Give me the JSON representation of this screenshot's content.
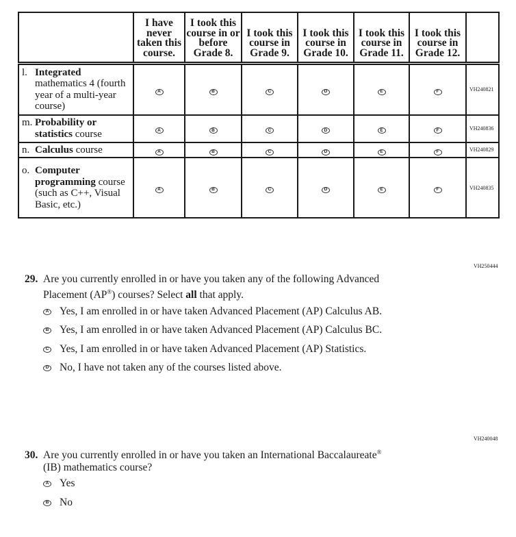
{
  "table": {
    "headers": [
      "",
      "I have never taken this course.",
      "I took this course in or before Grade 8.",
      "I took this course in Grade 9.",
      "I took this course in Grade 10.",
      "I took this course in Grade 11.",
      "I took this course in Grade 12.",
      ""
    ],
    "choices": [
      "A",
      "B",
      "C",
      "D",
      "E",
      "F"
    ],
    "rows": [
      {
        "letter": "l.",
        "bold": "Integrated",
        "rest": "mathematics 4 (fourth year of a multi-year course)",
        "code": "VH240821"
      },
      {
        "letter": "m.",
        "bold": "Probability or statistics",
        "rest": "course",
        "code": "VH240836"
      },
      {
        "letter": "n.",
        "bold": "Calculus",
        "rest": "course",
        "code": "VH240829"
      },
      {
        "letter": "o.",
        "bold": "Computer programming",
        "rest": "course (such as C++, Visual Basic, etc.)",
        "code": "VH240835"
      }
    ]
  },
  "q29": {
    "code": "VH250444",
    "number": "29.",
    "line1": "Are you currently enrolled in or have you taken any of the following Advanced",
    "line2a": "Placement (AP",
    "reg": "®",
    "line2b": ") courses? Select ",
    "line2bold": "all",
    "line2c": " that apply.",
    "options": [
      {
        "letter": "A",
        "text": "Yes, I am enrolled in or have taken Advanced Placement (AP) Calculus AB."
      },
      {
        "letter": "B",
        "text": "Yes, I am enrolled in or have taken Advanced Placement (AP) Calculus BC."
      },
      {
        "letter": "C",
        "text": "Yes, I am enrolled in or have taken Advanced Placement (AP) Statistics."
      },
      {
        "letter": "D",
        "text": "No, I have not taken any of the courses listed above."
      }
    ]
  },
  "q30": {
    "code": "VH240048",
    "number": "30.",
    "line1": "Are you currently enrolled in or have you taken an International Baccalaureate",
    "reg": "®",
    "line2": "(IB) mathematics course?",
    "options": [
      {
        "letter": "A",
        "text": "Yes"
      },
      {
        "letter": "B",
        "text": "No"
      }
    ]
  }
}
